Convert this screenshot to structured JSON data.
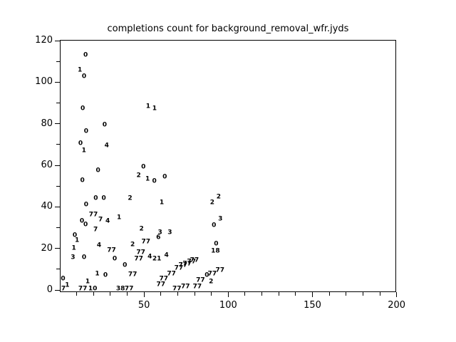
{
  "window": {
    "background": "#ffffff"
  },
  "chart_data": {
    "type": "scatter",
    "title": "completions count for background_removal_wfr.jyds",
    "xlabel": "",
    "ylabel": "",
    "xlim": [
      0,
      200
    ],
    "ylim": [
      0,
      120
    ],
    "x_major_ticks": [
      50,
      100,
      150,
      200
    ],
    "x_minor_tick_step": 10,
    "y_major_ticks": [
      0,
      20,
      40,
      60,
      80,
      100,
      120
    ],
    "y_minor_tick_step": 10,
    "grid": false,
    "legend": null,
    "marker_style": "numeric-text-label",
    "axis_color": "#000000",
    "text_color": "#000000",
    "points": [
      {
        "x": 15.3,
        "y": 112.8,
        "label": "0"
      },
      {
        "x": 11.9,
        "y": 105.5,
        "label": "1"
      },
      {
        "x": 14.4,
        "y": 102.6,
        "label": "0"
      },
      {
        "x": 13.6,
        "y": 87.1,
        "label": "0"
      },
      {
        "x": 52.4,
        "y": 88.1,
        "label": "1"
      },
      {
        "x": 56.2,
        "y": 87.0,
        "label": "1"
      },
      {
        "x": 26.6,
        "y": 79.2,
        "label": "0"
      },
      {
        "x": 15.6,
        "y": 76.1,
        "label": "0"
      },
      {
        "x": 12.3,
        "y": 70.3,
        "label": "0"
      },
      {
        "x": 14.3,
        "y": 67.0,
        "label": "1"
      },
      {
        "x": 27.8,
        "y": 69.1,
        "label": "4"
      },
      {
        "x": 22.7,
        "y": 57.4,
        "label": "0"
      },
      {
        "x": 13.4,
        "y": 52.4,
        "label": "0"
      },
      {
        "x": 49.6,
        "y": 59.0,
        "label": "0"
      },
      {
        "x": 46.8,
        "y": 54.9,
        "label": "2"
      },
      {
        "x": 52.1,
        "y": 53.0,
        "label": "1"
      },
      {
        "x": 56.1,
        "y": 52.2,
        "label": "0"
      },
      {
        "x": 62.3,
        "y": 54.2,
        "label": "0"
      },
      {
        "x": 21.3,
        "y": 43.8,
        "label": "0"
      },
      {
        "x": 26.1,
        "y": 43.8,
        "label": "0"
      },
      {
        "x": 41.7,
        "y": 43.9,
        "label": "2"
      },
      {
        "x": 60.5,
        "y": 42.0,
        "label": "1"
      },
      {
        "x": 15.6,
        "y": 40.7,
        "label": "0"
      },
      {
        "x": 19.9,
        "y": 36.0,
        "label": "77"
      },
      {
        "x": 24.2,
        "y": 33.6,
        "label": "7"
      },
      {
        "x": 28.4,
        "y": 32.9,
        "label": "4"
      },
      {
        "x": 35.2,
        "y": 34.6,
        "label": "1"
      },
      {
        "x": 13.1,
        "y": 32.9,
        "label": "0"
      },
      {
        "x": 15.3,
        "y": 31.2,
        "label": "0"
      },
      {
        "x": 21.2,
        "y": 28.8,
        "label": "7"
      },
      {
        "x": 48.5,
        "y": 29.1,
        "label": "2"
      },
      {
        "x": 59.5,
        "y": 27.6,
        "label": "3"
      },
      {
        "x": 65.3,
        "y": 27.3,
        "label": "3"
      },
      {
        "x": 58.5,
        "y": 25.0,
        "label": "6"
      },
      {
        "x": 8.9,
        "y": 25.9,
        "label": "0"
      },
      {
        "x": 10.2,
        "y": 23.5,
        "label": "1"
      },
      {
        "x": 43.2,
        "y": 21.6,
        "label": "2"
      },
      {
        "x": 51.1,
        "y": 23.0,
        "label": "77"
      },
      {
        "x": 8.3,
        "y": 19.9,
        "label": "1"
      },
      {
        "x": 23.3,
        "y": 21.1,
        "label": "4"
      },
      {
        "x": 30.7,
        "y": 19.0,
        "label": "77"
      },
      {
        "x": 48.1,
        "y": 17.8,
        "label": "77"
      },
      {
        "x": 7.8,
        "y": 15.3,
        "label": "3"
      },
      {
        "x": 14.4,
        "y": 15.3,
        "label": "0"
      },
      {
        "x": 32.6,
        "y": 14.9,
        "label": "0"
      },
      {
        "x": 46.8,
        "y": 14.6,
        "label": "77"
      },
      {
        "x": 53.4,
        "y": 15.8,
        "label": "4"
      },
      {
        "x": 57.6,
        "y": 14.9,
        "label": "21"
      },
      {
        "x": 63.3,
        "y": 16.3,
        "label": "4"
      },
      {
        "x": 38.6,
        "y": 11.8,
        "label": "0"
      },
      {
        "x": 92.8,
        "y": 22.1,
        "label": "0"
      },
      {
        "x": 92.4,
        "y": 18.5,
        "label": "18"
      },
      {
        "x": 94.3,
        "y": 44.7,
        "label": "2"
      },
      {
        "x": 90.5,
        "y": 42.0,
        "label": "2"
      },
      {
        "x": 95.3,
        "y": 33.8,
        "label": "3"
      },
      {
        "x": 91.5,
        "y": 30.7,
        "label": "0"
      },
      {
        "x": 22.2,
        "y": 7.7,
        "label": "1"
      },
      {
        "x": 27.1,
        "y": 7.0,
        "label": "0"
      },
      {
        "x": 43.2,
        "y": 7.2,
        "label": "77"
      },
      {
        "x": 1.9,
        "y": 5.3,
        "label": "0"
      },
      {
        "x": 4.4,
        "y": 2.2,
        "label": "1"
      },
      {
        "x": 16.5,
        "y": 3.8,
        "label": "1"
      },
      {
        "x": 19.5,
        "y": 0.5,
        "label": "10"
      },
      {
        "x": 2.1,
        "y": 0.2,
        "label": "7"
      },
      {
        "x": 13.6,
        "y": 0.3,
        "label": "77"
      },
      {
        "x": 36.0,
        "y": 0.5,
        "label": "38"
      },
      {
        "x": 41.1,
        "y": 0.5,
        "label": "77"
      },
      {
        "x": 70.6,
        "y": 10.3,
        "label": "77"
      },
      {
        "x": 73.1,
        "y": 11.5,
        "label": "77"
      },
      {
        "x": 75.6,
        "y": 12.5,
        "label": "77"
      },
      {
        "x": 78.2,
        "y": 13.5,
        "label": "77"
      },
      {
        "x": 79.9,
        "y": 14.1,
        "label": "77"
      },
      {
        "x": 66.3,
        "y": 7.4,
        "label": "77"
      },
      {
        "x": 61.7,
        "y": 5.1,
        "label": "77"
      },
      {
        "x": 60.0,
        "y": 2.4,
        "label": "77"
      },
      {
        "x": 95.1,
        "y": 9.4,
        "label": "77"
      },
      {
        "x": 90.5,
        "y": 7.7,
        "label": "77"
      },
      {
        "x": 87.3,
        "y": 7.0,
        "label": "0"
      },
      {
        "x": 83.5,
        "y": 4.3,
        "label": "77"
      },
      {
        "x": 89.8,
        "y": 3.8,
        "label": "2"
      },
      {
        "x": 81.6,
        "y": 1.5,
        "label": "77"
      },
      {
        "x": 74.6,
        "y": 1.5,
        "label": "77"
      },
      {
        "x": 69.5,
        "y": 0.5,
        "label": "77"
      }
    ]
  }
}
